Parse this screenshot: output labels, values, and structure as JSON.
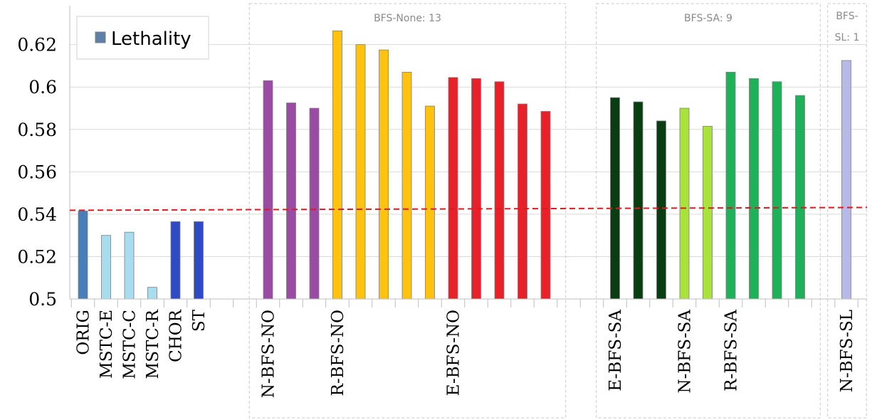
{
  "chart_data": {
    "type": "bar",
    "ylim": [
      0.5,
      0.635
    ],
    "yticks": [
      "0.5",
      "0.52",
      "0.54",
      "0.56",
      "0.58",
      "0.6",
      "0.62"
    ],
    "legend": {
      "label": "Lethality",
      "color": "#5e7fa8",
      "placement": "top-left"
    },
    "reference_line": {
      "value": 0.5415,
      "color": "#e0191f",
      "style": "dashed"
    },
    "groups": [
      {
        "label": "BFS-None: 13",
        "start": 8,
        "end": 20
      },
      {
        "label": "BFS-SA: 9",
        "start": 23,
        "end": 31
      },
      {
        "label": "BFS-SL: 1",
        "start": 33,
        "end": 33
      }
    ],
    "categories": [
      "ORIG",
      "MSTC-E",
      "MSTC-C",
      "MSTC-R",
      "CHOR",
      "ST",
      "",
      "",
      "N-BFS-NO",
      "",
      "",
      "R-BFS-NO",
      "",
      "",
      "",
      "",
      "E-BFS-NO",
      "",
      "",
      "",
      "",
      "",
      "",
      "E-BFS-SA",
      "",
      "",
      "N-BFS-SA",
      "",
      "R-BFS-SA",
      "",
      "",
      "",
      "",
      "N-BFS-SL"
    ],
    "series": [
      {
        "values": [
          0.5415,
          0.53,
          0.5315,
          0.5055,
          0.5365,
          0.5365,
          null,
          null,
          0.603,
          0.5925,
          0.59,
          0.6265,
          0.62,
          0.6175,
          0.607,
          0.591,
          0.6045,
          0.604,
          0.6025,
          0.592,
          0.5885,
          null,
          null,
          0.595,
          0.593,
          0.584,
          0.59,
          0.5815,
          0.607,
          0.604,
          0.6025,
          0.596,
          null,
          0.6125
        ],
        "colors": [
          "#4a7ebb",
          "#a8dcef",
          "#a8dcef",
          "#a8dcef",
          "#2f4ac8",
          "#2f4ac8",
          "",
          "",
          "#9b4ba5",
          "#9b4ba5",
          "#9b4ba5",
          "#ffc20e",
          "#ffc20e",
          "#ffc20e",
          "#ffc20e",
          "#ffc20e",
          "#e8202a",
          "#e8202a",
          "#e8202a",
          "#e8202a",
          "#e8202a",
          "",
          "",
          "#0a3d12",
          "#0a3d12",
          "#0a3d12",
          "#a8e23a",
          "#a8e23a",
          "#1fb05a",
          "#1fb05a",
          "#1fb05a",
          "#1fb05a",
          "",
          "#b7b9e6"
        ]
      }
    ]
  }
}
